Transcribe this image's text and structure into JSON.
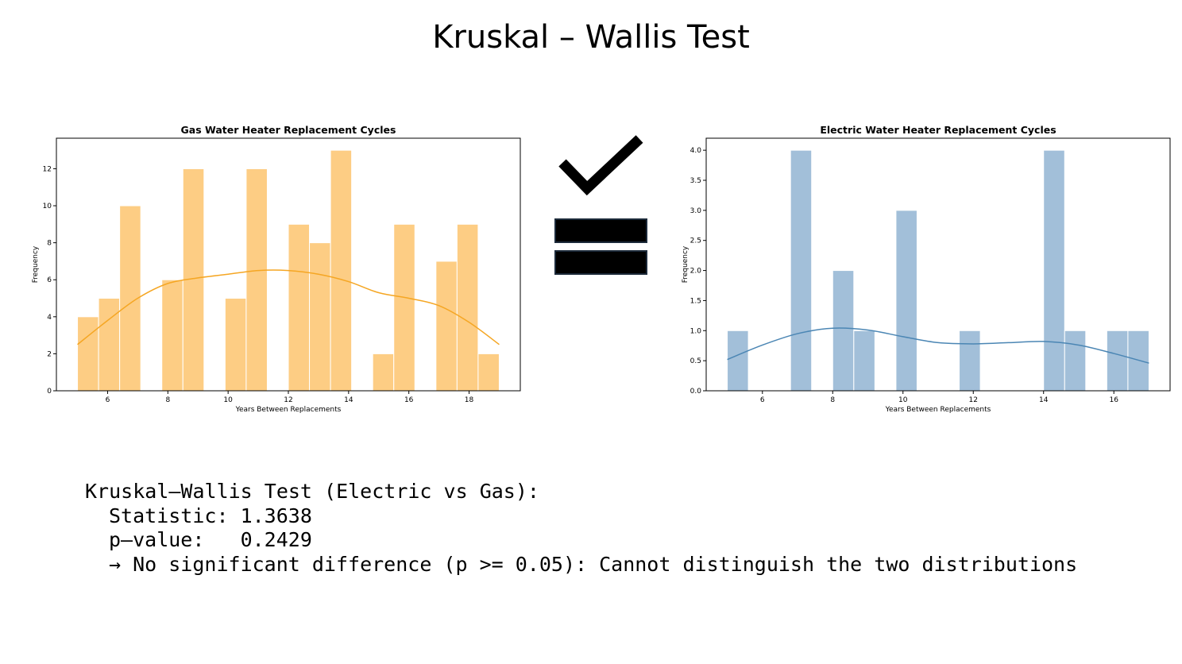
{
  "slide": {
    "title": "Kruskal – Wallis Test"
  },
  "chart_data": [
    {
      "type": "bar",
      "title": "Gas Water Heater Replacement Cycles",
      "xlabel": "Years Between Replacements",
      "ylabel": "Frequency",
      "bin_edges": [
        5.0,
        5.7,
        6.4,
        7.1,
        7.8,
        8.5,
        9.2,
        9.9,
        10.6,
        11.3,
        12.0,
        12.7,
        13.4,
        14.1,
        14.8,
        15.5,
        16.2,
        16.9,
        17.6,
        18.3,
        19.0
      ],
      "values": [
        4,
        5,
        10,
        0,
        6,
        12,
        0,
        5,
        12,
        0,
        9,
        8,
        13,
        0,
        2,
        9,
        0,
        7,
        9,
        2
      ],
      "kde": {
        "x": [
          5,
          6,
          7,
          8,
          9,
          10,
          11,
          12,
          13,
          14,
          15,
          16,
          17,
          18,
          19
        ],
        "y": [
          2.5,
          3.8,
          5.0,
          5.8,
          6.1,
          6.3,
          6.5,
          6.5,
          6.3,
          5.9,
          5.3,
          5.0,
          4.6,
          3.7,
          2.5
        ]
      },
      "xlim": [
        4.3,
        19.7
      ],
      "ylim": [
        0,
        13.65
      ],
      "xticks": [
        6,
        8,
        10,
        12,
        14,
        16,
        18
      ],
      "yticks": [
        0,
        2,
        4,
        6,
        8,
        10,
        12
      ],
      "colors": {
        "bar": "#fdcd84",
        "edge": "#ffffff",
        "kde": "#f5a623"
      },
      "grid": false
    },
    {
      "type": "bar",
      "title": "Electric Water Heater Replacement Cycles",
      "xlabel": "Years Between Replacements",
      "ylabel": "Frequency",
      "bin_edges": [
        5.0,
        5.6,
        6.2,
        6.8,
        7.4,
        8.0,
        8.6,
        9.2,
        9.8,
        10.4,
        11.0,
        11.6,
        12.2,
        12.8,
        13.4,
        14.0,
        14.6,
        15.2,
        15.8,
        16.4,
        17.0
      ],
      "values": [
        1,
        0,
        0,
        4,
        0,
        2,
        1,
        0,
        3,
        0,
        0,
        1,
        0,
        0,
        0,
        4,
        1,
        0,
        1,
        1
      ],
      "kde": {
        "x": [
          5,
          6,
          7,
          8,
          9,
          10,
          11,
          12,
          13,
          14,
          15,
          16,
          17
        ],
        "y": [
          0.52,
          0.76,
          0.95,
          1.04,
          1.01,
          0.9,
          0.8,
          0.78,
          0.8,
          0.82,
          0.76,
          0.62,
          0.46
        ]
      },
      "xlim": [
        4.4,
        17.6
      ],
      "ylim": [
        0,
        4.2
      ],
      "xticks": [
        6,
        8,
        10,
        12,
        14,
        16
      ],
      "yticks": [
        0.0,
        0.5,
        1.0,
        1.5,
        2.0,
        2.5,
        3.0,
        3.5,
        4.0
      ],
      "ytick_labels": [
        "0.0",
        "0.5",
        "1.0",
        "1.5",
        "2.0",
        "2.5",
        "3.0",
        "3.5",
        "4.0"
      ],
      "colors": {
        "bar": "#a2bfd9",
        "edge": "#ffffff",
        "kde": "#4b86b4"
      },
      "grid": false
    }
  ],
  "symbol": {
    "meaning": "check-mark over equals sign",
    "color": "#000000"
  },
  "result": {
    "header": "Kruskal–Wallis Test (Electric vs Gas):",
    "statistic_line": "Statistic: 1.3638",
    "pvalue_line": "p–value:   0.2429",
    "conclusion_line": "→ No significant difference (p >= 0.05): Cannot distinguish the two distributions"
  }
}
